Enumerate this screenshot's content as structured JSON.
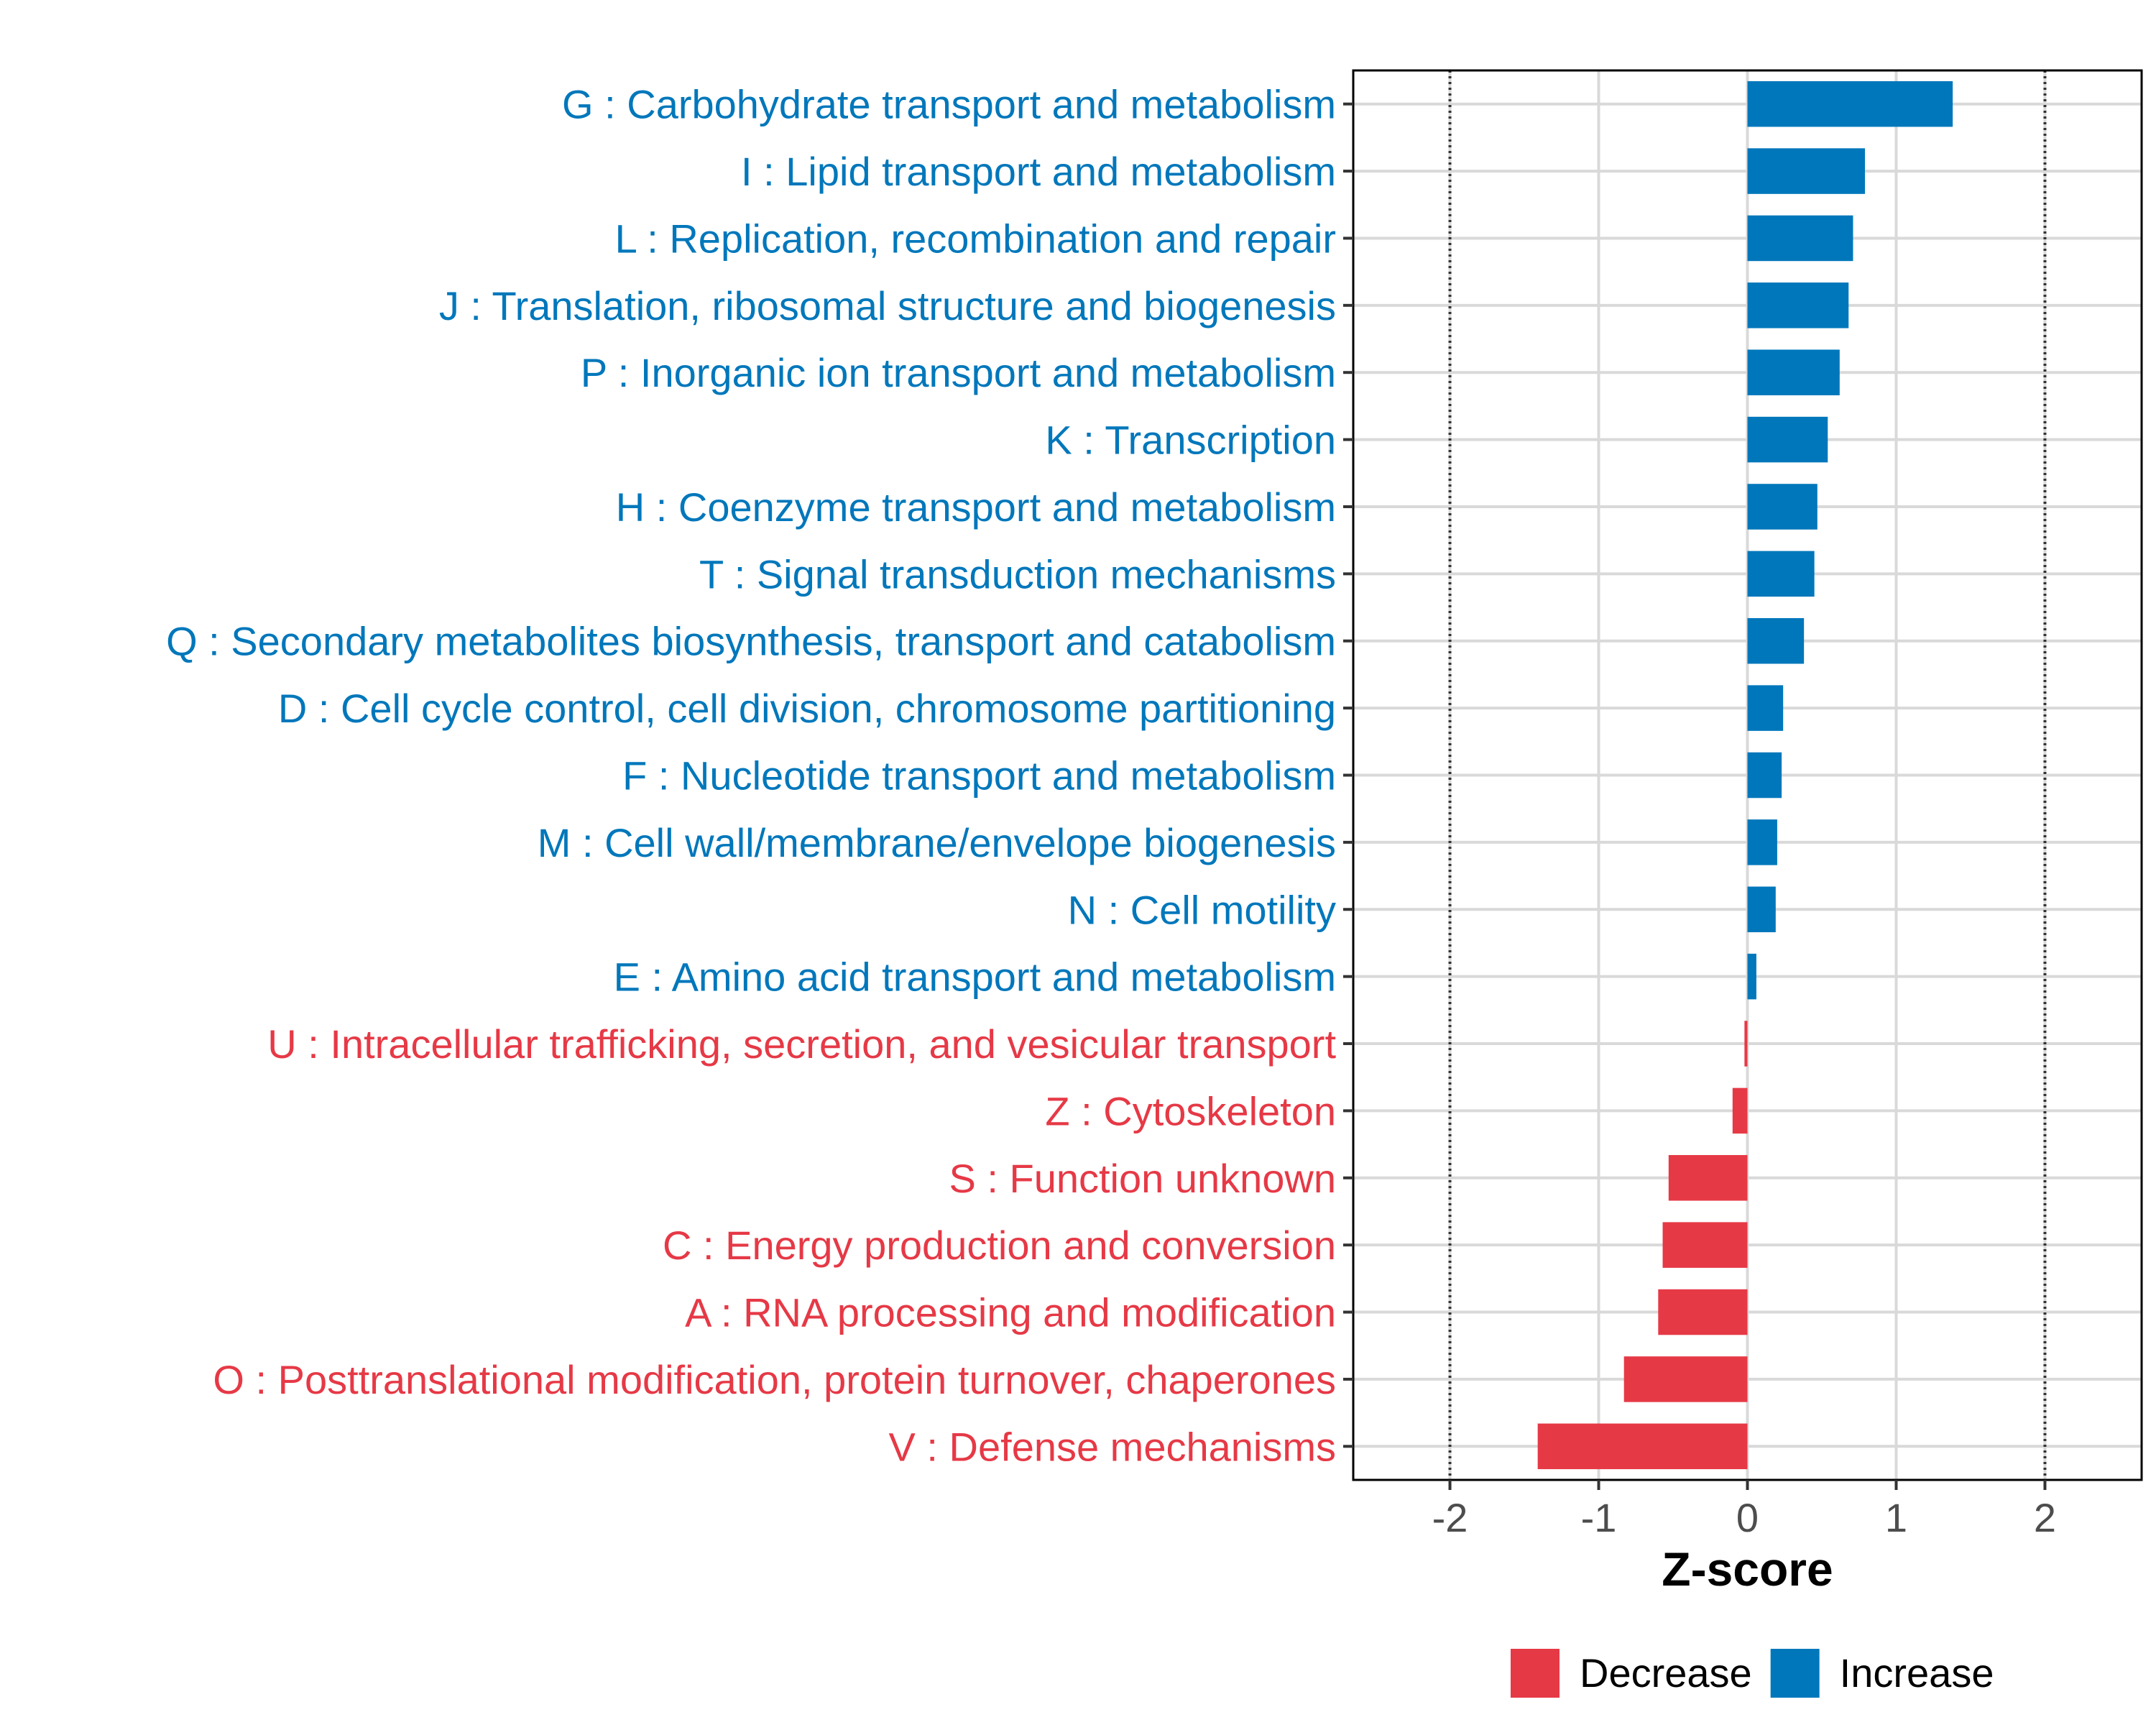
{
  "chart_data": {
    "type": "bar",
    "orientation": "horizontal",
    "xlabel": "Z-score",
    "xlim": [
      -2.65,
      2.65
    ],
    "xticks": [
      -2,
      -1,
      0,
      1,
      2
    ],
    "xtick_labels": [
      "-2",
      "-1",
      "0",
      "1",
      "2"
    ],
    "reference_lines": [
      -2,
      2
    ],
    "grid": true,
    "categories": [
      "G : Carbohydrate transport and metabolism",
      "I : Lipid transport and metabolism",
      "L : Replication, recombination and repair",
      "J : Translation, ribosomal structure and biogenesis",
      "P : Inorganic ion transport and metabolism",
      "K : Transcription",
      "H : Coenzyme transport and metabolism",
      "T : Signal transduction mechanisms",
      "Q : Secondary metabolites biosynthesis, transport and catabolism",
      "D : Cell cycle control, cell division, chromosome partitioning",
      "F : Nucleotide transport and metabolism",
      "M : Cell wall/membrane/envelope biogenesis",
      "N : Cell motility",
      "E : Amino acid transport and metabolism",
      "U : Intracellular trafficking, secretion, and vesicular transport",
      "Z : Cytoskeleton",
      "S : Function unknown",
      "C : Energy production and conversion",
      "A : RNA processing and modification",
      "O : Posttranslational modification, protein turnover, chaperones",
      "V : Defense mechanisms"
    ],
    "values": [
      1.38,
      0.79,
      0.71,
      0.68,
      0.62,
      0.54,
      0.47,
      0.45,
      0.38,
      0.24,
      0.23,
      0.2,
      0.19,
      0.06,
      -0.02,
      -0.1,
      -0.53,
      -0.57,
      -0.6,
      -0.83,
      -1.41
    ],
    "groups": [
      "Increase",
      "Increase",
      "Increase",
      "Increase",
      "Increase",
      "Increase",
      "Increase",
      "Increase",
      "Increase",
      "Increase",
      "Increase",
      "Increase",
      "Increase",
      "Increase",
      "Decrease",
      "Decrease",
      "Decrease",
      "Decrease",
      "Decrease",
      "Decrease",
      "Decrease"
    ],
    "colors": {
      "Increase": "#0077bb",
      "Decrease": "#e63946"
    },
    "legend": {
      "position": "bottom",
      "items": [
        {
          "label": "Decrease",
          "group": "Decrease"
        },
        {
          "label": "Increase",
          "group": "Increase"
        }
      ]
    }
  }
}
